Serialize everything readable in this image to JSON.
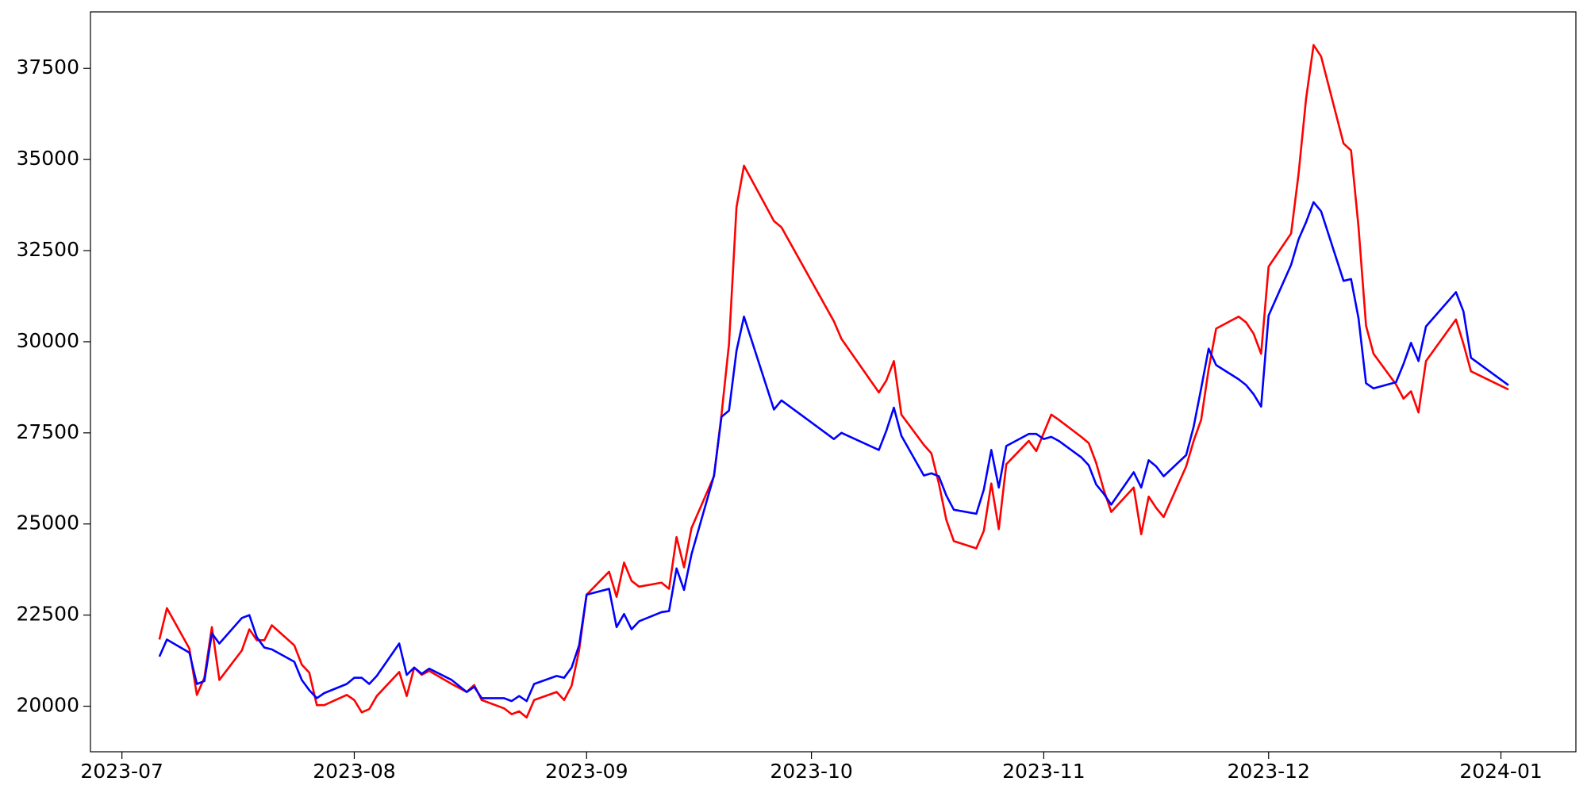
{
  "chart_data": {
    "type": "line",
    "x": [
      19544,
      19545,
      19548,
      19549,
      19550,
      19551,
      19552,
      19555,
      19556,
      19557,
      19558,
      19559,
      19562,
      19563,
      19564,
      19565,
      19566,
      19569,
      19570,
      19571,
      19572,
      19573,
      19576,
      19577,
      19578,
      19579,
      19580,
      19583,
      19585,
      19586,
      19587,
      19590,
      19591,
      19592,
      19593,
      19594,
      19597,
      19598,
      19599,
      19600,
      19601,
      19604,
      19605,
      19606,
      19607,
      19608,
      19611,
      19612,
      19613,
      19614,
      19615,
      19618,
      19619,
      19620,
      19621,
      19622,
      19626,
      19627,
      19634,
      19635,
      19640,
      19641,
      19642,
      19643,
      19646,
      19647,
      19648,
      19649,
      19650,
      19653,
      19654,
      19655,
      19656,
      19657,
      19660,
      19661,
      19662,
      19663,
      19664,
      19667,
      19668,
      19669,
      19670,
      19671,
      19674,
      19675,
      19676,
      19677,
      19678,
      19681,
      19682,
      19683,
      19684,
      19685,
      19688,
      19689,
      19690,
      19691,
      19692,
      19695,
      19696,
      19697,
      19698,
      19699,
      19702,
      19703,
      19704,
      19705,
      19706,
      19709,
      19710,
      19711,
      19712,
      19713,
      19717,
      19718,
      19719,
      19724
    ],
    "series": [
      {
        "color": "#ff0000",
        "values": [
          21830,
          22690,
          21580,
          20310,
          20780,
          22170,
          20720,
          21530,
          22110,
          21810,
          21810,
          22220,
          21670,
          21140,
          20920,
          20030,
          20030,
          20310,
          20170,
          19830,
          19920,
          20280,
          20940,
          20280,
          21060,
          20860,
          20970,
          20610,
          20390,
          20580,
          20170,
          19940,
          19780,
          19860,
          19690,
          20170,
          20390,
          20170,
          20560,
          21530,
          23060,
          23690,
          23000,
          23940,
          23440,
          23280,
          23390,
          23220,
          24640,
          23810,
          24890,
          26310,
          28000,
          29940,
          33690,
          34830,
          33310,
          33140,
          30560,
          30080,
          28610,
          28940,
          29470,
          28000,
          27170,
          26940,
          26110,
          25110,
          24530,
          24330,
          24810,
          26110,
          24860,
          26640,
          27280,
          27000,
          27500,
          28000,
          27860,
          27390,
          27220,
          26670,
          25940,
          25330,
          26000,
          24720,
          25750,
          25440,
          25190,
          26580,
          27280,
          27860,
          29250,
          30360,
          30690,
          30530,
          30220,
          29670,
          32060,
          32970,
          34610,
          36670,
          38140,
          37830,
          35440,
          35250,
          33140,
          30440,
          29670,
          28830,
          28440,
          28640,
          28060,
          29470,
          30610,
          29940,
          29190,
          28690
        ]
      },
      {
        "color": "#0000ff",
        "values": [
          21360,
          21830,
          21470,
          20610,
          20690,
          22000,
          21720,
          22420,
          22500,
          21890,
          21610,
          21560,
          21220,
          20720,
          20440,
          20220,
          20360,
          20610,
          20780,
          20780,
          20610,
          20830,
          21720,
          20860,
          21060,
          20890,
          21030,
          20720,
          20390,
          20530,
          20220,
          20220,
          20140,
          20280,
          20140,
          20610,
          20830,
          20780,
          21060,
          21670,
          23060,
          23220,
          22170,
          22530,
          22110,
          22330,
          22580,
          22610,
          23780,
          23190,
          24170,
          26330,
          27940,
          28110,
          29750,
          30690,
          28140,
          28390,
          27330,
          27500,
          27030,
          27560,
          28190,
          27420,
          26330,
          26390,
          26310,
          25780,
          25390,
          25280,
          25940,
          27030,
          26000,
          27140,
          27470,
          27470,
          27330,
          27390,
          27280,
          26830,
          26610,
          26080,
          25830,
          25530,
          26420,
          26000,
          26750,
          26580,
          26310,
          26890,
          27670,
          28720,
          29810,
          29360,
          28970,
          28810,
          28560,
          28220,
          30720,
          32110,
          32810,
          33280,
          33830,
          33580,
          31670,
          31720,
          30640,
          28860,
          28720,
          28890,
          29390,
          29970,
          29470,
          30420,
          31360,
          30830,
          29560,
          28810
        ]
      }
    ],
    "xlim": [
      19534.8,
      19733
    ],
    "xticks": [
      {
        "value": 19539,
        "label": "2023-07"
      },
      {
        "value": 19570,
        "label": "2023-08"
      },
      {
        "value": 19601,
        "label": "2023-09"
      },
      {
        "value": 19631,
        "label": "2023-10"
      },
      {
        "value": 19662,
        "label": "2023-11"
      },
      {
        "value": 19692,
        "label": "2023-12"
      },
      {
        "value": 19723,
        "label": "2024-01"
      }
    ],
    "ylim": [
      18750,
      39050
    ],
    "yticks": [
      20000,
      22500,
      25000,
      27500,
      30000,
      32500,
      35000,
      37500
    ]
  }
}
